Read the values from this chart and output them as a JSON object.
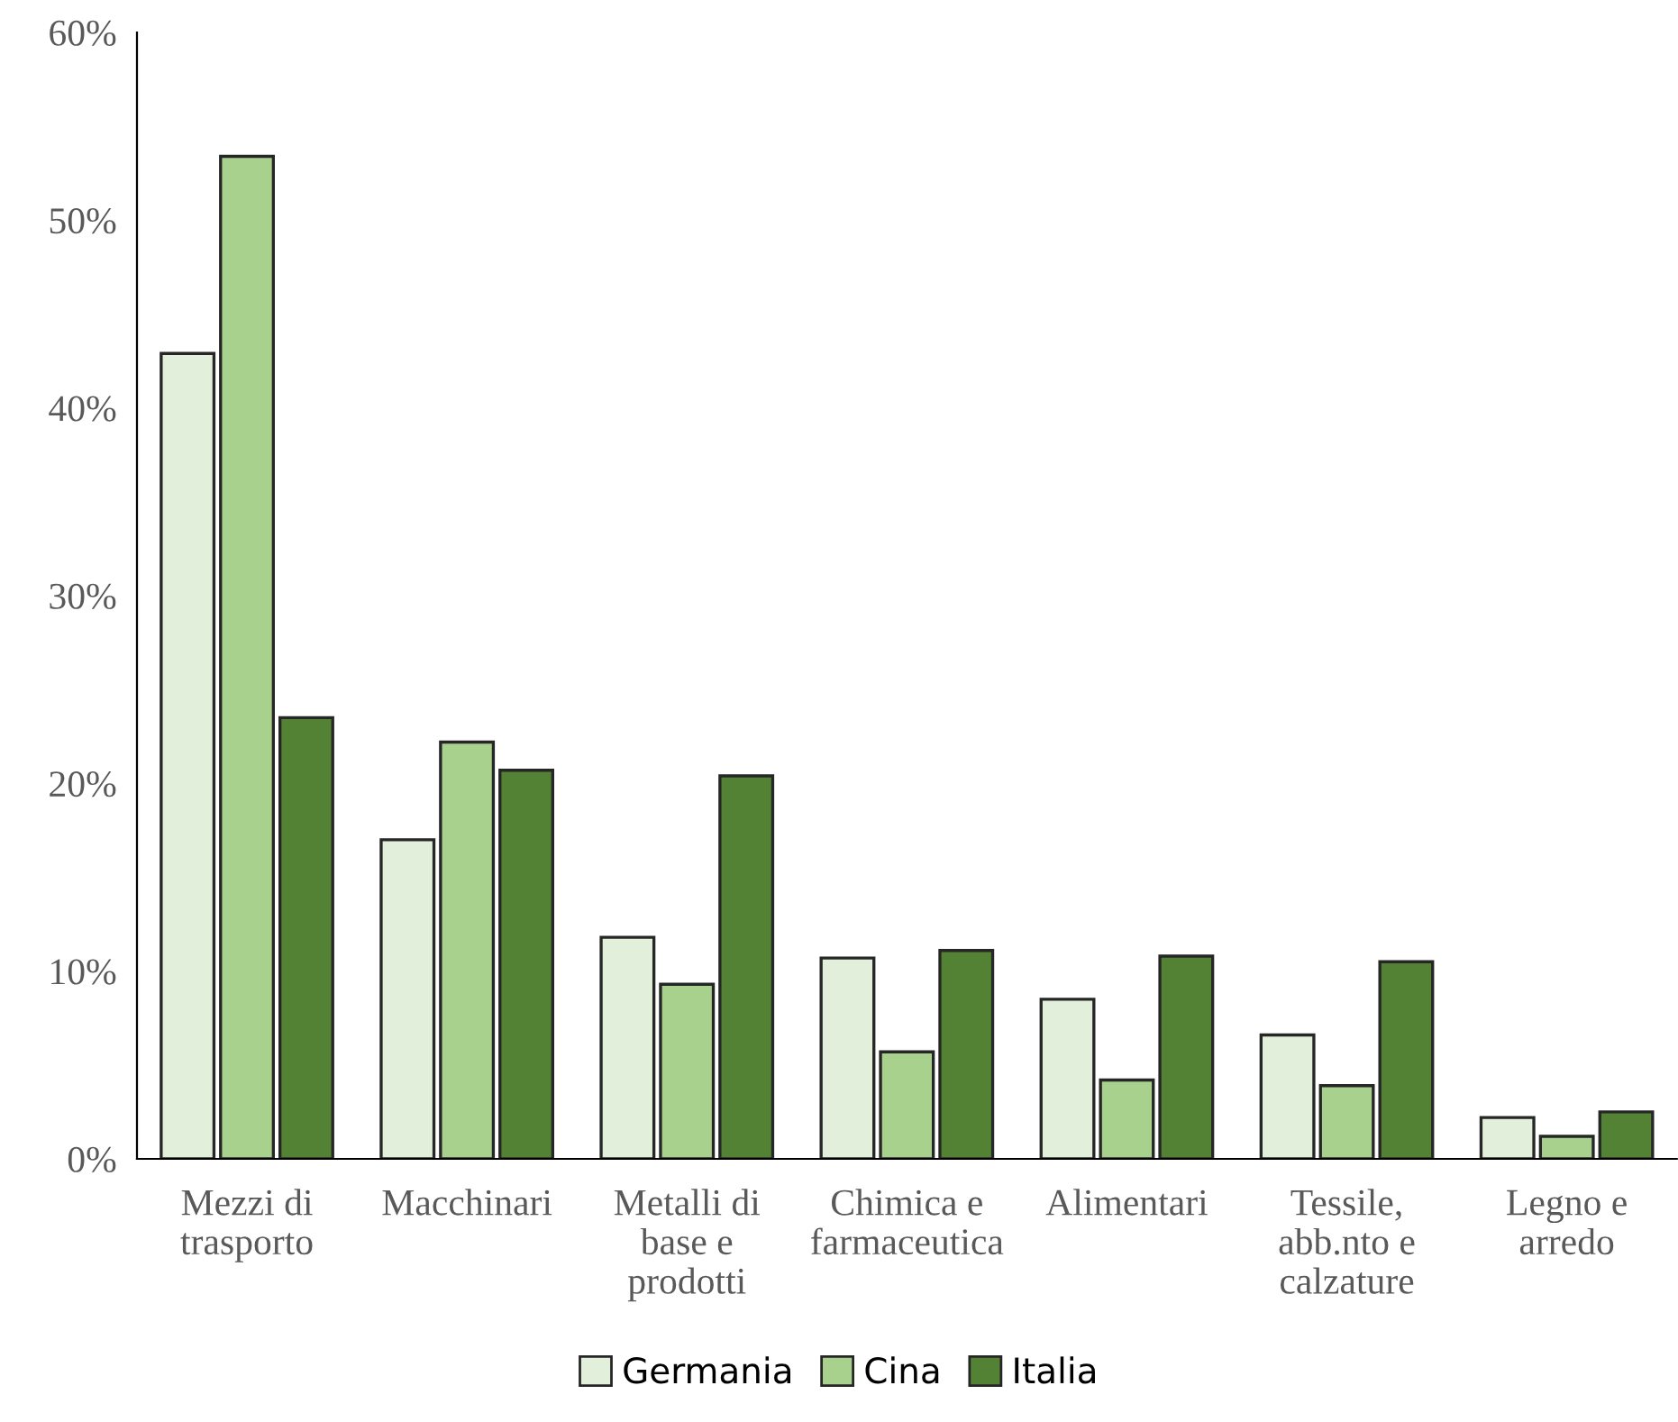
{
  "chart_data": {
    "type": "bar",
    "categories": [
      "Mezzi di\ntrasporto",
      "Macchinari",
      "Metalli di\nbase e\nprodotti",
      "Chimica e\nfarmaceutica",
      "Alimentari",
      "Tessile,\nabb.nto e\ncalzature",
      "Legno e\narredo"
    ],
    "series": [
      {
        "name": "Germania",
        "color": "#e2efda",
        "values": [
          42.9,
          17.0,
          11.8,
          10.7,
          8.5,
          6.6,
          2.2
        ]
      },
      {
        "name": "Cina",
        "color": "#a9d18e",
        "values": [
          53.4,
          22.2,
          9.3,
          5.7,
          4.2,
          3.9,
          1.2
        ]
      },
      {
        "name": "Italia",
        "color": "#548235",
        "values": [
          23.5,
          20.7,
          20.4,
          11.1,
          10.8,
          10.5,
          2.5
        ]
      }
    ],
    "ylim": [
      0,
      60
    ],
    "yticks": [
      {
        "value": 0,
        "label": "0%"
      },
      {
        "value": 10,
        "label": "10%"
      },
      {
        "value": 20,
        "label": "20%"
      },
      {
        "value": 30,
        "label": "30%"
      },
      {
        "value": 40,
        "label": "40%"
      },
      {
        "value": 50,
        "label": "50%"
      },
      {
        "value": 60,
        "label": "60%"
      }
    ],
    "grid": false,
    "legend": "bottom"
  }
}
